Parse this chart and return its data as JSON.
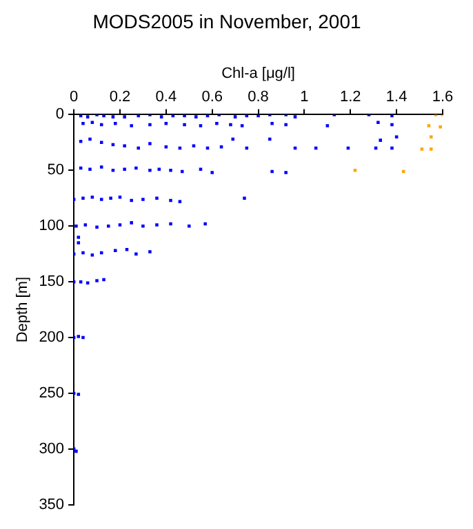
{
  "chart_data": {
    "type": "scatter",
    "title": "MODS2005 in November, 2001",
    "xlabel": "Chl-a [μg/l]",
    "ylabel": "Depth [m]",
    "xlim": [
      0,
      1.6
    ],
    "xticks": [
      0,
      0.2,
      0.4,
      0.6,
      0.8,
      1,
      1.2,
      1.4,
      1.6
    ],
    "ylim": [
      350,
      0
    ],
    "yticks": [
      0,
      50,
      100,
      150,
      200,
      250,
      300,
      350
    ],
    "grid": false,
    "marker": "square",
    "series": [
      {
        "color": "#0000ff",
        "x": [
          0.03,
          0.06,
          0.1,
          0.13,
          0.17,
          0.22,
          0.28,
          0.33,
          0.38,
          0.43,
          0.48,
          0.53,
          0.58,
          0.63,
          0.7,
          0.75,
          0.8,
          0.85,
          0.92,
          0.96,
          1.13,
          1.28,
          1.38,
          0.04,
          0.08,
          0.12,
          0.18,
          0.25,
          0.33,
          0.4,
          0.48,
          0.55,
          0.62,
          0.68,
          0.73,
          0.86,
          0.92,
          1.1,
          1.32,
          1.38,
          0.03,
          0.07,
          0.12,
          0.17,
          0.22,
          0.28,
          0.33,
          0.4,
          0.46,
          0.52,
          0.58,
          0.64,
          0.69,
          0.75,
          0.85,
          0.96,
          1.05,
          1.19,
          1.31,
          1.4,
          1.38,
          1.33,
          0.03,
          0.07,
          0.12,
          0.17,
          0.22,
          0.27,
          0.33,
          0.37,
          0.42,
          0.47,
          0.55,
          0.6,
          0.86,
          0.92,
          0,
          0.04,
          0.08,
          0.12,
          0.16,
          0.2,
          0.25,
          0.3,
          0.36,
          0.42,
          0.46,
          0.74,
          0.01,
          0.05,
          0.1,
          0.15,
          0.2,
          0.25,
          0.3,
          0.36,
          0.42,
          0.5,
          0.57,
          0.02,
          0.02,
          0,
          0.04,
          0.08,
          0.12,
          0.18,
          0.23,
          0.27,
          0.33,
          0,
          0.03,
          0.06,
          0.1,
          0.13,
          0,
          0.02,
          0.04,
          0,
          0.02,
          0,
          0.01
        ],
        "values": [
          1,
          2,
          0,
          1,
          2,
          2,
          1,
          0,
          2,
          1,
          1,
          2,
          1,
          0,
          2,
          1,
          1,
          0,
          0,
          2,
          0,
          0,
          1,
          8,
          7,
          9,
          8,
          10,
          9,
          8,
          9,
          10,
          8,
          9,
          10,
          8,
          9,
          10,
          7,
          9,
          24,
          22,
          25,
          27,
          28,
          30,
          26,
          29,
          30,
          28,
          30,
          29,
          22,
          30,
          22,
          30,
          30,
          30,
          30,
          20,
          30,
          23,
          48,
          49,
          47,
          50,
          49,
          48,
          50,
          49,
          50,
          51,
          49,
          52,
          51,
          52,
          76,
          75,
          74,
          76,
          75,
          74,
          77,
          76,
          75,
          77,
          78,
          75,
          100,
          99,
          101,
          100,
          99,
          97,
          100,
          99,
          98,
          100,
          98,
          110,
          115,
          125,
          124,
          126,
          124,
          122,
          121,
          125,
          123,
          150,
          150,
          151,
          149,
          148,
          200,
          199,
          200,
          250,
          251,
          300,
          302
        ]
      },
      {
        "color": "#ffa500",
        "x": [
          1.57,
          1.6,
          1.54,
          1.59,
          1.55,
          1.51,
          1.55,
          1.22,
          1.43
        ],
        "values": [
          0,
          0,
          10,
          11,
          20,
          31,
          31,
          50,
          51
        ]
      }
    ]
  }
}
